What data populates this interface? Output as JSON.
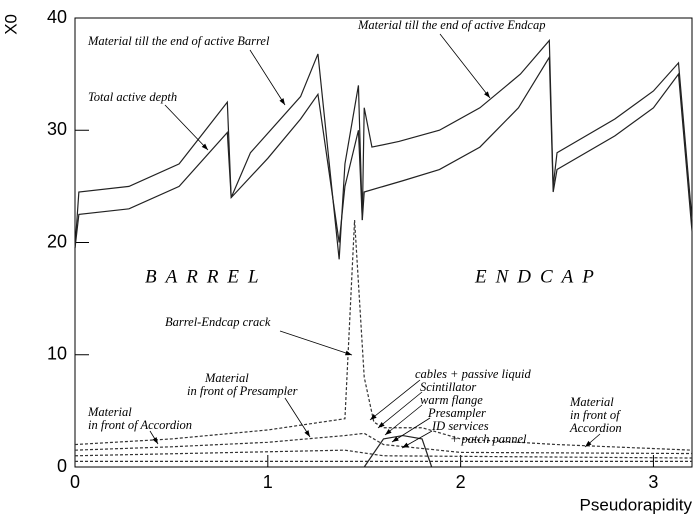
{
  "chart_data": {
    "type": "line",
    "ylabel": "X0",
    "xlabel": "Pseudorapidity",
    "xlim": [
      0,
      3.2
    ],
    "ylim": [
      0,
      40
    ],
    "xticks": [
      0,
      1,
      2,
      3
    ],
    "yticks": [
      0,
      10,
      20,
      30,
      40
    ],
    "regions": [
      "BARREL",
      "ENDCAP"
    ],
    "annotations": [
      "Material till the end of active Barrel",
      "Material till the end of active Endcap",
      "Total active depth",
      "Barrel-Endcap crack",
      [
        "Material",
        "in front of Presampler"
      ],
      [
        "Material",
        "in front of Accordion"
      ],
      "cables + passive liquid",
      "Scintillator",
      "warm flange",
      "Presampler",
      "ID services",
      "+ patch pannel",
      [
        "Material",
        "in front of",
        "Accordion"
      ]
    ],
    "series": [
      {
        "color": "#222",
        "dash": false,
        "x": [
          0,
          0.02,
          0.28,
          0.54,
          0.79,
          0.81,
          0.91,
          1.17,
          1.26,
          1.37,
          1.4,
          1.47,
          1.49,
          1.5,
          1.54,
          1.68,
          1.89,
          2.1,
          2.31,
          2.46,
          2.48,
          2.5,
          2.6,
          2.8,
          3.0,
          3.13,
          3.2
        ],
        "values": [
          19.5,
          24.5,
          25,
          27,
          32.5,
          24,
          28,
          33,
          36.8,
          18.5,
          27,
          34,
          22,
          32,
          28.5,
          29,
          30,
          32,
          35,
          38,
          25,
          28,
          29,
          31,
          33.5,
          36,
          22
        ]
      },
      {
        "color": "#222",
        "dash": false,
        "x": [
          0,
          0.02,
          0.28,
          0.54,
          0.79,
          0.81,
          1.0,
          1.17,
          1.26,
          1.37,
          1.4,
          1.47,
          1.49,
          1.5,
          1.6,
          1.7,
          1.89,
          2.1,
          2.3,
          2.46,
          2.48,
          2.5,
          2.8,
          3.0,
          3.13,
          3.2
        ],
        "values": [
          19.5,
          22.5,
          23,
          25,
          29.8,
          24,
          27.5,
          31,
          33.2,
          20,
          25,
          30,
          22,
          24.5,
          25,
          25.5,
          26.5,
          28.5,
          32,
          36.5,
          24.5,
          26.5,
          29.5,
          32,
          35,
          21
        ]
      },
      {
        "color": "#333",
        "dash": true,
        "x": [
          0,
          0.5,
          1.0,
          1.4,
          1.45,
          1.5,
          1.55,
          1.6,
          1.8,
          2.0,
          2.5,
          3.2
        ],
        "values": [
          2,
          2.5,
          3.3,
          4.3,
          22,
          8,
          4,
          3.5,
          3.5,
          2.5,
          2,
          1.5
        ]
      },
      {
        "color": "#333",
        "dash": true,
        "x": [
          0,
          0.5,
          1.0,
          1.4,
          1.5,
          1.6,
          2.0,
          3.2
        ],
        "values": [
          1.5,
          1.8,
          2.2,
          2.8,
          3,
          2,
          1.3,
          1.2
        ]
      },
      {
        "color": "#333",
        "dash": true,
        "x": [
          0,
          1.4,
          1.6,
          3.2
        ],
        "values": [
          1,
          1.5,
          1,
          0.8
        ]
      },
      {
        "color": "#333",
        "dash": true,
        "x": [
          0,
          3.2
        ],
        "values": [
          0.5,
          0.5
        ]
      },
      {
        "color": "#222",
        "dash": false,
        "x": [
          1.5,
          1.6,
          1.7,
          1.8,
          1.85
        ],
        "values": [
          0,
          2.5,
          2.8,
          2.5,
          0
        ]
      }
    ]
  }
}
